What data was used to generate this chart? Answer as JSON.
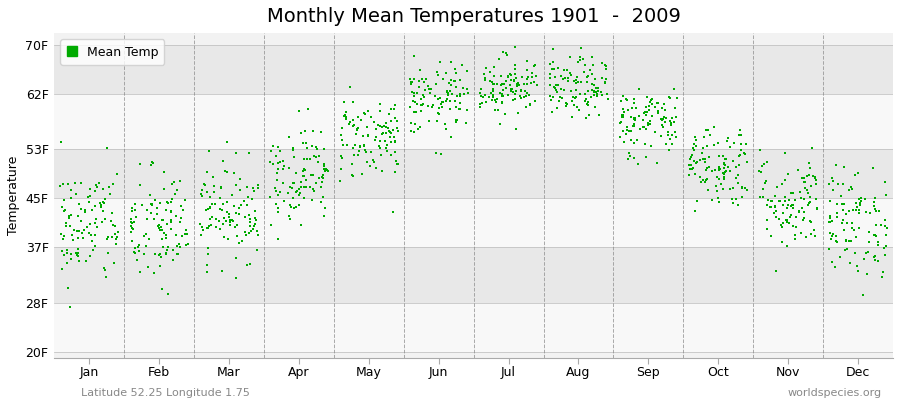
{
  "title": "Monthly Mean Temperatures 1901  -  2009",
  "ylabel": "Temperature",
  "xlabel_labels": [
    "Jan",
    "Feb",
    "Mar",
    "Apr",
    "May",
    "Jun",
    "Jul",
    "Aug",
    "Sep",
    "Oct",
    "Nov",
    "Dec"
  ],
  "yticks": [
    20,
    28,
    37,
    45,
    53,
    62,
    70
  ],
  "ytick_labels": [
    "20F",
    "28F",
    "37F",
    "45F",
    "53F",
    "62F",
    "70F"
  ],
  "ylim": [
    19,
    72
  ],
  "xlim": [
    0,
    12
  ],
  "dot_color": "#00aa00",
  "dot_size": 3,
  "legend_label": "Mean Temp",
  "bg_color": "#f2f2f2",
  "band_light": "#f8f8f8",
  "band_dark": "#e8e8e8",
  "grid_color": "#888888",
  "n_years": 109,
  "monthly_means_f": [
    40.5,
    40.0,
    43.0,
    49.0,
    55.0,
    61.0,
    63.5,
    63.0,
    57.5,
    50.5,
    44.5,
    41.0
  ],
  "monthly_stds_f": [
    5.0,
    5.0,
    4.0,
    4.0,
    3.5,
    3.0,
    2.5,
    2.5,
    3.0,
    3.5,
    4.0,
    4.5
  ],
  "subtitle_left": "Latitude 52.25 Longitude 1.75",
  "subtitle_right": "worldspecies.org",
  "title_fontsize": 14,
  "label_fontsize": 9,
  "tick_fontsize": 9,
  "subtitle_fontsize": 8
}
